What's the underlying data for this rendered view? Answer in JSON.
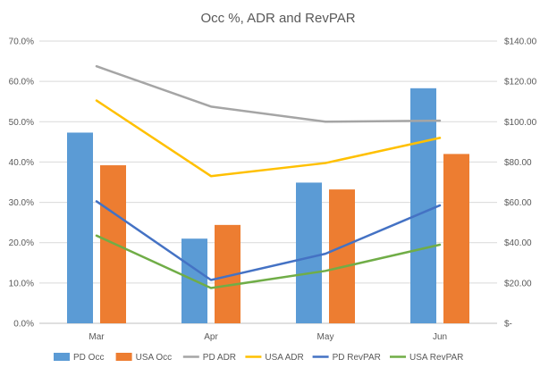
{
  "chart_data": {
    "type": "bar",
    "title": "Occ %, ADR and RevPAR",
    "categories": [
      "Mar",
      "Apr",
      "May",
      "Jun"
    ],
    "y_left": {
      "ylim": [
        0,
        70
      ],
      "ticks": [
        0,
        10,
        20,
        30,
        40,
        50,
        60,
        70
      ],
      "tick_labels": [
        "0.0%",
        "10.0%",
        "20.0%",
        "30.0%",
        "40.0%",
        "50.0%",
        "60.0%",
        "70.0%"
      ]
    },
    "y_right": {
      "ylim": [
        0,
        140
      ],
      "ticks": [
        0,
        20,
        40,
        60,
        80,
        100,
        120,
        140
      ],
      "tick_labels": [
        "$-",
        "$20.00",
        "$40.00",
        "$60.00",
        "$80.00",
        "$100.00",
        "$120.00",
        "$140.00"
      ]
    },
    "grid": true,
    "legend_position": "bottom",
    "series": [
      {
        "name": "PD Occ",
        "kind": "bar",
        "axis": "left",
        "color": "#5b9bd5",
        "values": [
          47.3,
          21.0,
          34.9,
          58.3
        ]
      },
      {
        "name": "USA Occ",
        "kind": "bar",
        "axis": "left",
        "color": "#ed7d31",
        "values": [
          39.2,
          24.4,
          33.2,
          42.0
        ]
      },
      {
        "name": "PD ADR",
        "kind": "line",
        "axis": "right",
        "color": "#a5a5a5",
        "values": [
          127.5,
          107.5,
          100.0,
          100.5
        ]
      },
      {
        "name": "USA ADR",
        "kind": "line",
        "axis": "right",
        "color": "#ffc000",
        "values": [
          110.5,
          73.0,
          79.5,
          92.0
        ]
      },
      {
        "name": "PD RevPAR",
        "kind": "line",
        "axis": "right",
        "color": "#4472c4",
        "values": [
          60.5,
          21.5,
          34.5,
          58.5
        ]
      },
      {
        "name": "USA RevPAR",
        "kind": "line",
        "axis": "right",
        "color": "#70ad47",
        "values": [
          43.5,
          17.5,
          26.0,
          39.0
        ]
      }
    ]
  }
}
